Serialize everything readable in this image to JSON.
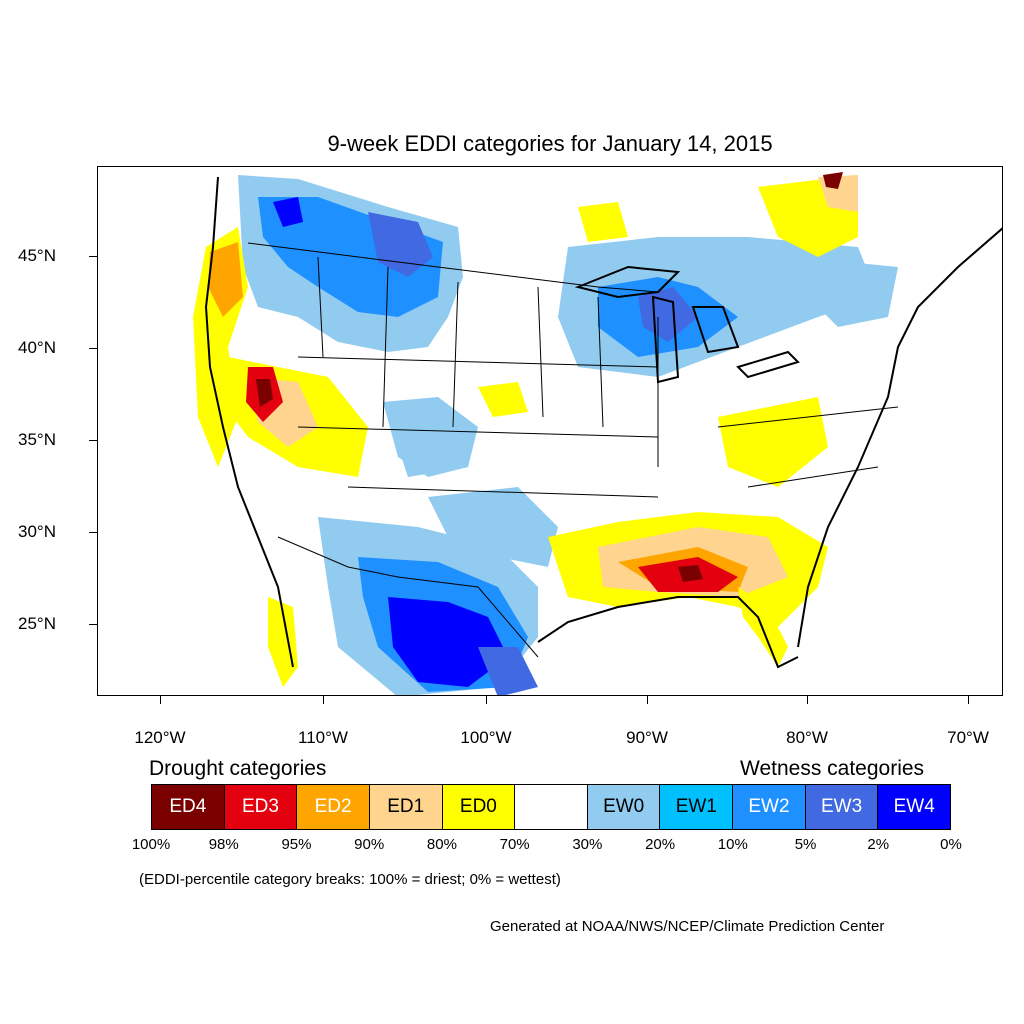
{
  "title": "9-week EDDI categories for January 14, 2015",
  "map": {
    "lat_labels": [
      "45°N",
      "40°N",
      "35°N",
      "30°N",
      "25°N"
    ],
    "lon_labels": [
      "120°W",
      "110°W",
      "100°W",
      "90°W",
      "80°W",
      "70°W"
    ],
    "colors": {
      "ED4": "#7a0000",
      "ED3": "#e3000f",
      "ED2": "#ffa500",
      "ED1": "#ffd48e",
      "ED0": "#ffff00",
      "neutral": "#ffffff",
      "EW0": "#91ccf0",
      "EW1": "#00c0ff",
      "EW2": "#1e90ff",
      "EW3": "#4169e1",
      "EW4": "#0000ff"
    }
  },
  "legend": {
    "drought_heading": "Drought categories",
    "wetness_heading": "Wetness categories",
    "categories": [
      {
        "label": "ED4",
        "color": "#7a0000",
        "text_color": "#ffffff"
      },
      {
        "label": "ED3",
        "color": "#e3000f",
        "text_color": "#ffffff"
      },
      {
        "label": "ED2",
        "color": "#ffa500",
        "text_color": "#ffffff"
      },
      {
        "label": "ED1",
        "color": "#ffd48e",
        "text_color": "#000000"
      },
      {
        "label": "ED0",
        "color": "#ffff00",
        "text_color": "#000000"
      },
      {
        "label": "",
        "color": "#ffffff",
        "text_color": "#000000"
      },
      {
        "label": "EW0",
        "color": "#91ccf0",
        "text_color": "#000000"
      },
      {
        "label": "EW1",
        "color": "#00c0ff",
        "text_color": "#000000"
      },
      {
        "label": "EW2",
        "color": "#1e90ff",
        "text_color": "#ffffff"
      },
      {
        "label": "EW3",
        "color": "#4169e1",
        "text_color": "#ffffff"
      },
      {
        "label": "EW4",
        "color": "#0000ff",
        "text_color": "#ffffff"
      }
    ],
    "breaks": [
      "100%",
      "98%",
      "95%",
      "90%",
      "80%",
      "70%",
      "30%",
      "20%",
      "10%",
      "5%",
      "2%",
      "0%"
    ],
    "note": "(EDDI-percentile category breaks: 100% = driest; 0% = wettest)"
  },
  "credit": "Generated at NOAA/NWS/NCEP/Climate Prediction Center"
}
